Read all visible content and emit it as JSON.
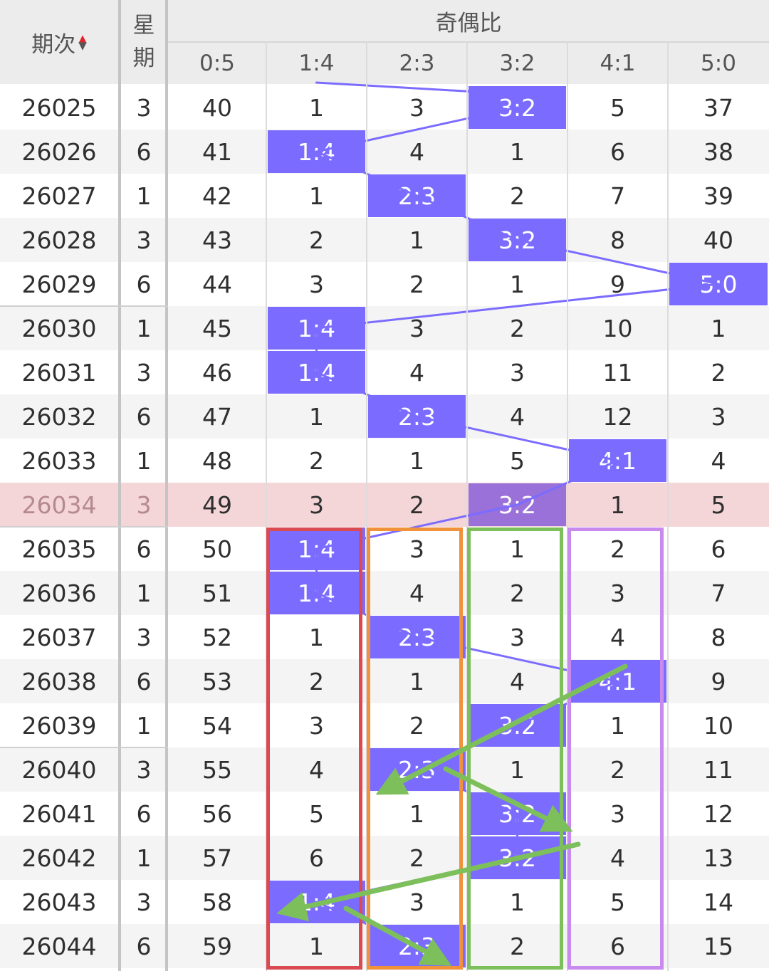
{
  "header": {
    "issue_label": "期次",
    "weekday_label_1": "星",
    "weekday_label_2": "期",
    "group_label": "奇偶比",
    "columns": [
      "0:5",
      "1:4",
      "2:3",
      "3:2",
      "4:1",
      "5:0"
    ]
  },
  "colors": {
    "highlight": "#7b6cff",
    "current_highlight": "#9a70d9",
    "current_row": "#f4d5d8",
    "sort_up": "#e0262b",
    "sort_down": "#555555",
    "box_1_4": "#d94a52",
    "box_2_3": "#f0913b",
    "box_3_2": "#7dbf5a",
    "box_4_1": "#c98af0",
    "arrow": "#7dbf5a"
  },
  "current_issue": "26034",
  "rows": [
    {
      "issue": "26025",
      "weekday": "3",
      "cells": [
        "40",
        "1",
        "3",
        "3:2",
        "5",
        "37"
      ],
      "hit": 3
    },
    {
      "issue": "26026",
      "weekday": "6",
      "cells": [
        "41",
        "1:4",
        "4",
        "1",
        "6",
        "38"
      ],
      "hit": 1
    },
    {
      "issue": "26027",
      "weekday": "1",
      "cells": [
        "42",
        "1",
        "2:3",
        "2",
        "7",
        "39"
      ],
      "hit": 2
    },
    {
      "issue": "26028",
      "weekday": "3",
      "cells": [
        "43",
        "2",
        "1",
        "3:2",
        "8",
        "40"
      ],
      "hit": 3
    },
    {
      "issue": "26029",
      "weekday": "6",
      "cells": [
        "44",
        "3",
        "2",
        "1",
        "9",
        "5:0"
      ],
      "hit": 5
    },
    {
      "issue": "26030",
      "weekday": "1",
      "cells": [
        "45",
        "1:4",
        "3",
        "2",
        "10",
        "1"
      ],
      "hit": 1
    },
    {
      "issue": "26031",
      "weekday": "3",
      "cells": [
        "46",
        "1:4",
        "4",
        "3",
        "11",
        "2"
      ],
      "hit": 1
    },
    {
      "issue": "26032",
      "weekday": "6",
      "cells": [
        "47",
        "1",
        "2:3",
        "4",
        "12",
        "3"
      ],
      "hit": 2
    },
    {
      "issue": "26033",
      "weekday": "1",
      "cells": [
        "48",
        "2",
        "1",
        "5",
        "4:1",
        "4"
      ],
      "hit": 4
    },
    {
      "issue": "26034",
      "weekday": "3",
      "cells": [
        "49",
        "3",
        "2",
        "3:2",
        "1",
        "5"
      ],
      "hit": 3
    },
    {
      "issue": "26035",
      "weekday": "6",
      "cells": [
        "50",
        "1:4",
        "3",
        "1",
        "2",
        "6"
      ],
      "hit": 1
    },
    {
      "issue": "26036",
      "weekday": "1",
      "cells": [
        "51",
        "1:4",
        "4",
        "2",
        "3",
        "7"
      ],
      "hit": 1
    },
    {
      "issue": "26037",
      "weekday": "3",
      "cells": [
        "52",
        "1",
        "2:3",
        "3",
        "4",
        "8"
      ],
      "hit": 2
    },
    {
      "issue": "26038",
      "weekday": "6",
      "cells": [
        "53",
        "2",
        "1",
        "4",
        "4:1",
        "9"
      ],
      "hit": 4
    },
    {
      "issue": "26039",
      "weekday": "1",
      "cells": [
        "54",
        "3",
        "2",
        "3:2",
        "1",
        "10"
      ],
      "hit": 3
    },
    {
      "issue": "26040",
      "weekday": "3",
      "cells": [
        "55",
        "4",
        "2:3",
        "1",
        "2",
        "11"
      ],
      "hit": 2
    },
    {
      "issue": "26041",
      "weekday": "6",
      "cells": [
        "56",
        "5",
        "1",
        "3:2",
        "3",
        "12"
      ],
      "hit": 3
    },
    {
      "issue": "26042",
      "weekday": "1",
      "cells": [
        "57",
        "6",
        "2",
        "3:2",
        "4",
        "13"
      ],
      "hit": 3
    },
    {
      "issue": "26043",
      "weekday": "3",
      "cells": [
        "58",
        "1:4",
        "3",
        "1",
        "5",
        "14"
      ],
      "hit": 1
    },
    {
      "issue": "26044",
      "weekday": "6",
      "cells": [
        "59",
        "1",
        "2:3",
        "2",
        "6",
        "15"
      ],
      "hit": 2
    }
  ]
}
